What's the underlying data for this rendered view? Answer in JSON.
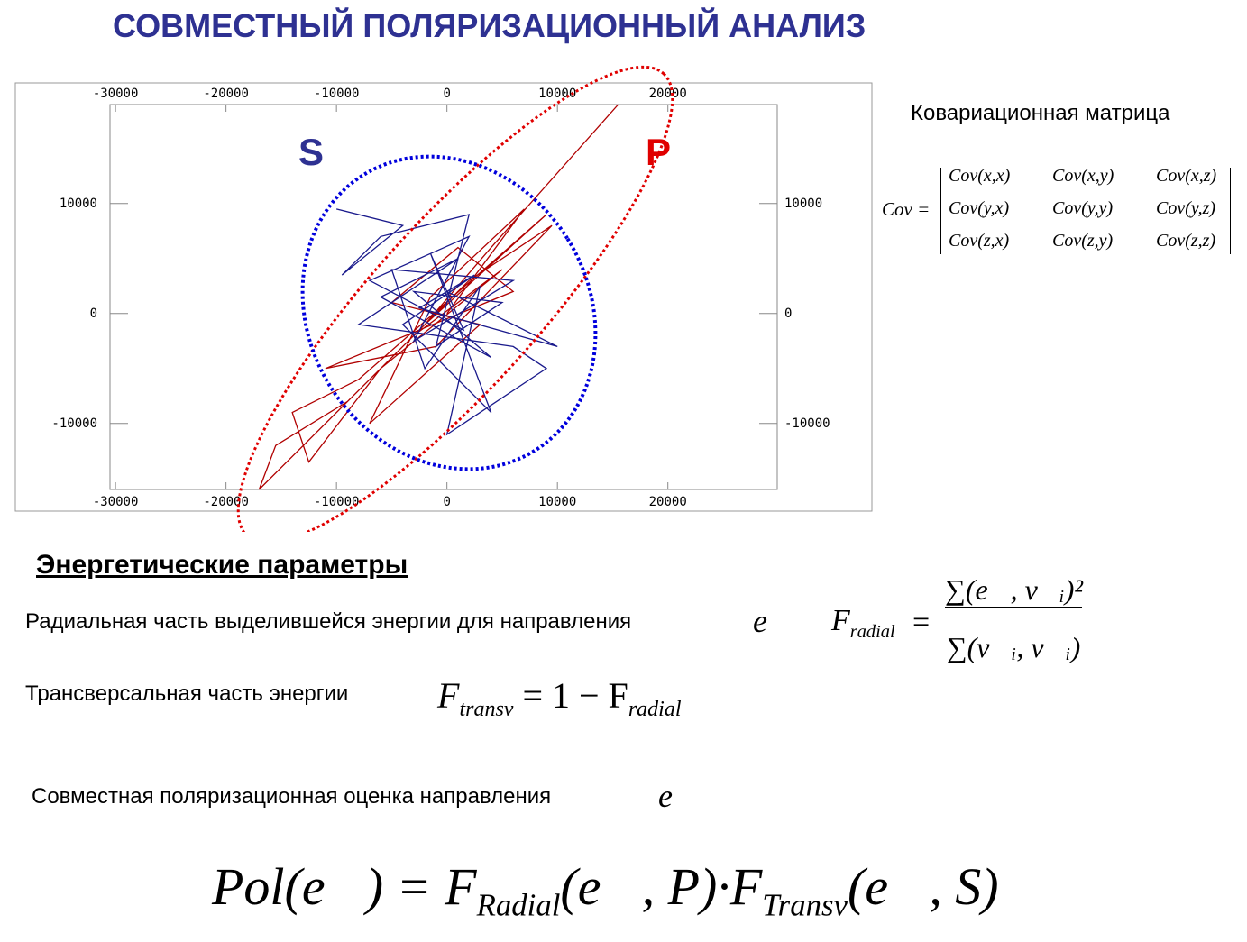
{
  "title": "СОВМЕСТНЫЙ ПОЛЯРИЗАЦИОННЫЙ АНАЛИЗ",
  "chart_data": {
    "type": "line",
    "series": [
      {
        "name": "P",
        "color": "#b00000",
        "x": [
          15500,
          4000,
          -2000,
          9000,
          -8000,
          -14000,
          -12500,
          -6000,
          5000,
          -3000,
          -17000,
          -15500,
          -9000,
          2000,
          9500,
          -1000,
          -11000,
          6000,
          1000,
          -5000,
          3000,
          -7000,
          -1500,
          7000,
          0
        ],
        "values": [
          19000,
          6000,
          -1000,
          9000,
          -6000,
          -9000,
          -13500,
          -5000,
          4000,
          -2000,
          -16000,
          -12000,
          -8000,
          3000,
          8000,
          -3000,
          -5000,
          2000,
          6000,
          1000,
          -1000,
          -10000,
          1500,
          9500,
          0
        ]
      },
      {
        "name": "S",
        "color": "#1a1a8c",
        "x": [
          -10000,
          -4000,
          -9500,
          -6000,
          2000,
          -1000,
          5000,
          -3000,
          4000,
          -6000,
          1000,
          -8000,
          6000,
          9000,
          0,
          3000,
          -2000,
          -5000,
          6000,
          -3000,
          2000,
          -7000,
          1500,
          -1500,
          4000,
          -4000,
          2500,
          -2500,
          10000,
          0
        ],
        "values": [
          9500,
          8000,
          3500,
          7000,
          9000,
          -3000,
          1000,
          2000,
          -4000,
          1500,
          5000,
          -1000,
          -3000,
          -5000,
          -11000,
          2500,
          -5000,
          4000,
          3000,
          -2500,
          7000,
          3000,
          -1500,
          5500,
          -9000,
          -1000,
          3500,
          500,
          -3000,
          2000
        ]
      }
    ],
    "xlim": [
      -30500,
      29900
    ],
    "ylim": [
      -16000,
      19000
    ],
    "xticks": [
      -30000,
      -20000,
      -10000,
      0,
      10000,
      20000
    ],
    "yticks": [
      -10000,
      0,
      10000
    ]
  },
  "covariance": {
    "title": "Ковариационная матрица",
    "lhs": "Cov =",
    "matrix": [
      [
        "Cov(x,x)",
        "Cov(x,y)",
        "Cov(x,z)"
      ],
      [
        "Cov(y,x)",
        "Cov(y,y)",
        "Cov(y,z)"
      ],
      [
        "Cov(z,x)",
        "Cov(z,y)",
        "Cov(z,z)"
      ]
    ]
  },
  "energy": {
    "heading": "Энергетические параметры",
    "radial_text": "Радиальная часть выделившейся энергии для направления",
    "radial_vector": "e⃗",
    "radial_formula": {
      "lhs": "F",
      "lhs_sub": "radial",
      "eq": "=",
      "numerator": "∑(e⃗, v⃗ᵢ)²",
      "denominator": "∑(v⃗ᵢ, v⃗ᵢ)"
    },
    "transv_text": "Трансверсальная часть энергии",
    "transv_formula": {
      "lhs": "F",
      "lhs_sub": "transv",
      "rhs": "= 1 − F",
      "rhs_sub": "radial"
    },
    "joint_text": "Совместная поляризационная оценка направления",
    "joint_vector": "e⃗",
    "joint_formula": {
      "a": "Pol(e⃗) = F",
      "a_sub": "Radial",
      "b": "(e⃗, P)·F",
      "b_sub": "Transv",
      "c": "(e⃗, S)"
    }
  }
}
